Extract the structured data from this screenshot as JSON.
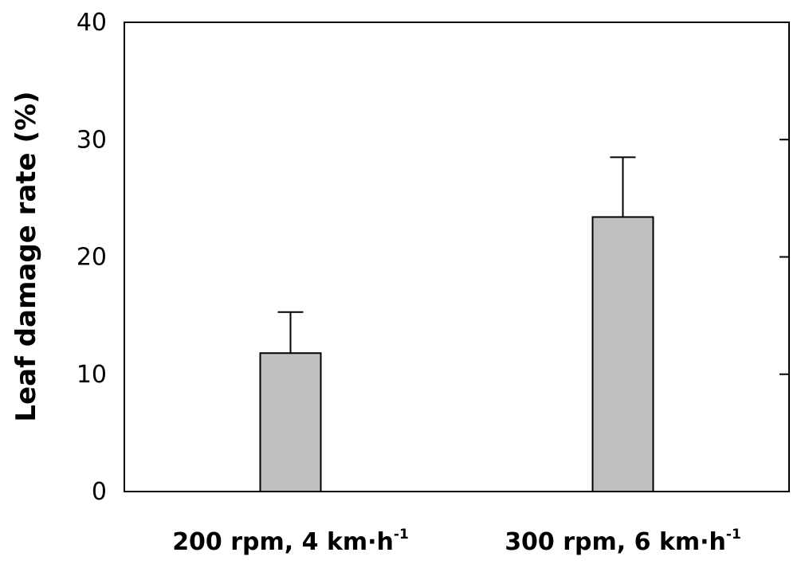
{
  "chart_data": {
    "type": "bar",
    "title": "",
    "xlabel": "",
    "ylabel": "Leaf damage rate (%)",
    "ylim": [
      0,
      40
    ],
    "yticks": [
      "0",
      "10",
      "20",
      "30",
      "40"
    ],
    "categories": [
      {
        "base": "200 rpm, 4 km·h",
        "sup": "-1"
      },
      {
        "base": "300 rpm, 6 km·h",
        "sup": "-1"
      }
    ],
    "series": [
      {
        "values": [
          11.8,
          23.4
        ],
        "error_upper": [
          3.5,
          5.1
        ],
        "color": "#c0c0c0"
      }
    ],
    "grid": false,
    "legend": "none"
  }
}
